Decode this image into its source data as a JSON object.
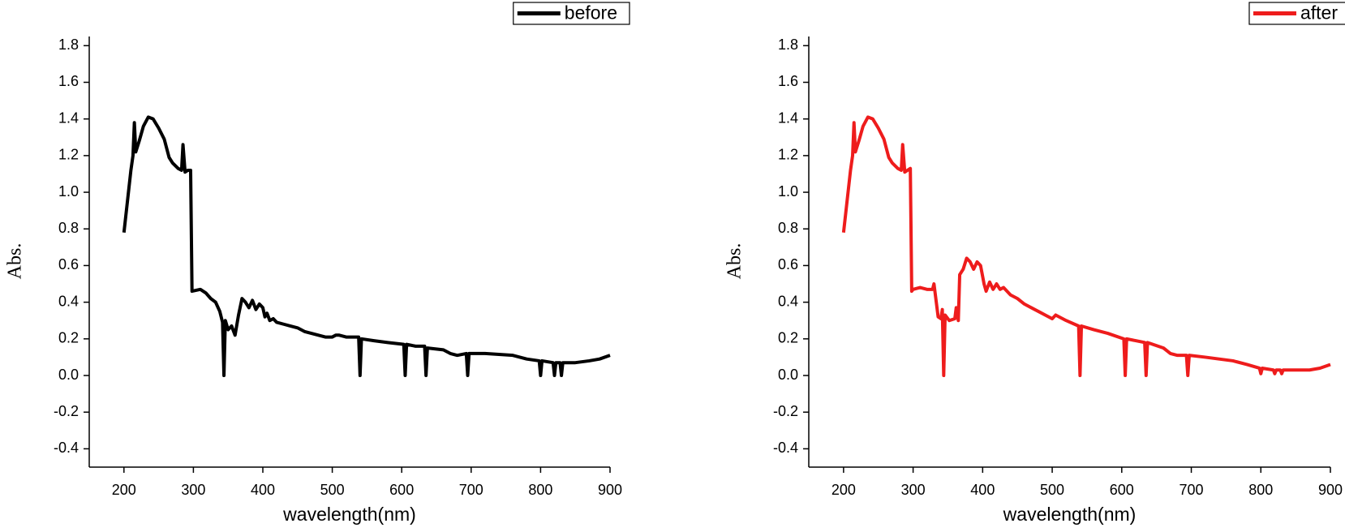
{
  "chart_data": [
    {
      "type": "line",
      "x_label": "wavelength(nm)",
      "y_label": "Abs.",
      "legend": "top-right",
      "xlim": [
        150,
        900
      ],
      "xticks": [
        200,
        300,
        400,
        500,
        600,
        700,
        800,
        900
      ],
      "ylim": [
        -0.5,
        1.85
      ],
      "yticks": [
        -0.4,
        -0.2,
        {
          "value": 0,
          "label": "0.0"
        },
        0.2,
        0.4,
        0.6,
        0.8,
        {
          "value": 1,
          "label": "1.0"
        },
        1.2,
        1.4,
        1.6,
        1.8
      ],
      "series": [
        {
          "name": "before",
          "color": "#000000",
          "x": [
            200,
            205,
            210,
            213,
            215,
            217,
            222,
            228,
            235,
            242,
            250,
            258,
            265,
            270,
            278,
            283,
            285,
            288,
            292,
            296,
            298,
            310,
            318,
            325,
            332,
            338,
            342,
            344,
            346,
            350,
            355,
            360,
            365,
            370,
            375,
            380,
            385,
            390,
            395,
            400,
            403,
            406,
            410,
            415,
            420,
            430,
            440,
            450,
            460,
            470,
            480,
            490,
            500,
            505,
            510,
            520,
            538,
            540,
            542,
            560,
            580,
            603,
            605,
            607,
            620,
            633,
            635,
            637,
            660,
            670,
            680,
            693,
            695,
            697,
            720,
            760,
            780,
            798,
            800,
            802,
            818,
            820,
            822,
            828,
            830,
            832,
            850,
            870,
            885,
            900
          ],
          "values": [
            0.78,
            0.95,
            1.12,
            1.2,
            1.38,
            1.22,
            1.28,
            1.36,
            1.41,
            1.4,
            1.35,
            1.29,
            1.19,
            1.16,
            1.13,
            1.12,
            1.26,
            1.11,
            1.12,
            1.12,
            0.46,
            0.47,
            0.45,
            0.42,
            0.4,
            0.35,
            0.29,
            0.0,
            0.3,
            0.25,
            0.27,
            0.22,
            0.33,
            0.42,
            0.4,
            0.37,
            0.41,
            0.36,
            0.39,
            0.37,
            0.32,
            0.34,
            0.3,
            0.31,
            0.29,
            0.28,
            0.27,
            0.26,
            0.24,
            0.23,
            0.22,
            0.21,
            0.21,
            0.22,
            0.22,
            0.21,
            0.21,
            0.0,
            0.2,
            0.19,
            0.18,
            0.17,
            0.0,
            0.17,
            0.16,
            0.16,
            0.0,
            0.15,
            0.14,
            0.12,
            0.11,
            0.12,
            0.0,
            0.12,
            0.12,
            0.11,
            0.09,
            0.08,
            0.0,
            0.08,
            0.07,
            0.0,
            0.07,
            0.07,
            0.0,
            0.07,
            0.07,
            0.08,
            0.09,
            0.11
          ]
        }
      ]
    },
    {
      "type": "line",
      "x_label": "wavelength(nm)",
      "y_label": "Abs.",
      "legend": "top-right",
      "xlim": [
        150,
        900
      ],
      "xticks": [
        200,
        300,
        400,
        500,
        600,
        700,
        800,
        900
      ],
      "ylim": [
        -0.5,
        1.85
      ],
      "yticks": [
        -0.4,
        -0.2,
        {
          "value": 0,
          "label": "0.0"
        },
        0.2,
        0.4,
        0.6,
        0.8,
        {
          "value": 1,
          "label": "1.0"
        },
        1.2,
        1.4,
        1.6,
        1.8
      ],
      "series": [
        {
          "name": "after",
          "color": "#ee1c1c",
          "x": [
            200,
            205,
            210,
            213,
            215,
            217,
            222,
            228,
            235,
            242,
            250,
            258,
            265,
            270,
            278,
            283,
            285,
            288,
            292,
            296,
            298,
            300,
            310,
            320,
            328,
            330,
            332,
            336,
            340,
            342,
            344,
            346,
            352,
            360,
            362,
            365,
            367,
            372,
            377,
            382,
            387,
            392,
            397,
            402,
            405,
            410,
            415,
            420,
            425,
            430,
            440,
            450,
            460,
            470,
            480,
            490,
            500,
            505,
            520,
            538,
            540,
            542,
            560,
            580,
            603,
            605,
            607,
            620,
            633,
            635,
            637,
            660,
            670,
            680,
            693,
            695,
            697,
            720,
            760,
            780,
            798,
            800,
            802,
            818,
            820,
            822,
            828,
            830,
            832,
            850,
            870,
            885,
            900
          ],
          "values": [
            0.78,
            0.95,
            1.12,
            1.2,
            1.38,
            1.22,
            1.28,
            1.36,
            1.41,
            1.4,
            1.35,
            1.29,
            1.19,
            1.16,
            1.13,
            1.12,
            1.26,
            1.11,
            1.12,
            1.13,
            0.46,
            0.47,
            0.48,
            0.47,
            0.47,
            0.5,
            0.44,
            0.32,
            0.31,
            0.36,
            0.0,
            0.33,
            0.3,
            0.31,
            0.37,
            0.3,
            0.55,
            0.58,
            0.64,
            0.62,
            0.58,
            0.62,
            0.6,
            0.5,
            0.46,
            0.51,
            0.47,
            0.5,
            0.47,
            0.48,
            0.44,
            0.42,
            0.39,
            0.37,
            0.35,
            0.33,
            0.31,
            0.33,
            0.3,
            0.27,
            0.0,
            0.27,
            0.25,
            0.23,
            0.2,
            0.0,
            0.2,
            0.19,
            0.18,
            0.0,
            0.18,
            0.15,
            0.12,
            0.11,
            0.11,
            0.0,
            0.11,
            0.1,
            0.08,
            0.06,
            0.04,
            0.01,
            0.04,
            0.03,
            0.01,
            0.03,
            0.03,
            0.01,
            0.03,
            0.03,
            0.03,
            0.04,
            0.06
          ]
        }
      ]
    }
  ]
}
